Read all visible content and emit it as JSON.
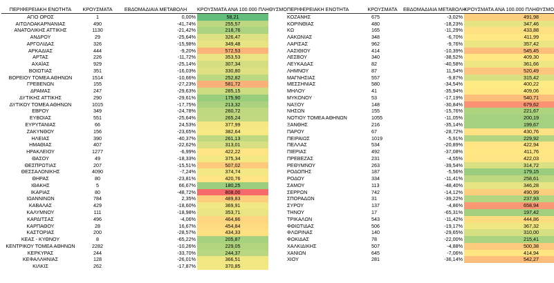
{
  "headers": {
    "region": "ΠΕΡΙΦΕΡΕΙΑΚΗ ΕΝΟΤΗΤΑ",
    "cases": "ΚΡΟΥΣΜΑΤΑ",
    "weekly_change": "ΕΒΔΟΜΑΔΙΑΙΑ ΜΕΤΑΒΟΛΗ",
    "rate": "ΚΡΟΥΣΜΑΤΑ ΑΝΑ 100.000 ΠΛΗΘΥΣΜΟ"
  },
  "color_scale": {
    "low": "#63be7b",
    "mid": "#ffeb84",
    "high": "#f8696b",
    "min": 58.21,
    "mid_value": 400,
    "max": 808.0
  },
  "left_rows": [
    {
      "region": "ΑΓΙΟ ΟΡΟΣ",
      "cases": "1",
      "change": "0,00%",
      "rate": "58,21"
    },
    {
      "region": "ΑΙΤΩΛΟΑΚΑΡΝΑΝΙΑΣ",
      "cases": "490",
      "change": "-41,74%",
      "rate": "255,57"
    },
    {
      "region": "ΑΝΑΤΟΛΙΚΗΣ ΑΤΤΙΚΗΣ",
      "cases": "1130",
      "change": "-21,42%",
      "rate": "218,76"
    },
    {
      "region": "ΑΝΔΡΟΥ",
      "cases": "29",
      "change": "-25,64%",
      "rate": "326,47"
    },
    {
      "region": "ΑΡΓΟΛΙΔΑΣ",
      "cases": "326",
      "change": "-15,98%",
      "rate": "349,48"
    },
    {
      "region": "ΑΡΚΑΔΙΑΣ",
      "cases": "444",
      "change": "-9,20%",
      "rate": "572,53"
    },
    {
      "region": "ΑΡΤΑΣ",
      "cases": "226",
      "change": "-11,72%",
      "rate": "353,53"
    },
    {
      "region": "ΑΧΑΪΑΣ",
      "cases": "929",
      "change": "-25,14%",
      "rate": "307,34"
    },
    {
      "region": "ΒΟΙΩΤΙΑΣ",
      "cases": "351",
      "change": "-16,03%",
      "rate": "330,80"
    },
    {
      "region": "ΒΟΡΕΙΟΥ ΤΟΜΕΑ ΑΘΗΝΩΝ",
      "cases": "1514",
      "change": "-10,66%",
      "rate": "252,82"
    },
    {
      "region": "ΓΡΕΒΕΝΩΝ",
      "cases": "155",
      "change": "-27,23%",
      "rate": "581,72"
    },
    {
      "region": "ΔΡΑΜΑΣ",
      "cases": "247",
      "change": "-29,63%",
      "rate": "285,15"
    },
    {
      "region": "ΔΥΤΙΚΗΣ ΑΤΤΙΚΗΣ",
      "cases": "290",
      "change": "-29,61%",
      "rate": "175,90"
    },
    {
      "region": "ΔΥΤΙΚΟΥ ΤΟΜΕΑ ΑΘΗΝΩΝ",
      "cases": "1015",
      "change": "-17,75%",
      "rate": "213,32"
    },
    {
      "region": "ΕΒΡΟΥ",
      "cases": "349",
      "change": "-24,78%",
      "rate": "260,72"
    },
    {
      "region": "ΕΥΒΟΙΑΣ",
      "cases": "551",
      "change": "-25,64%",
      "rate": "265,24"
    },
    {
      "region": "ΕΥΡΥΤΑΝΙΑΣ",
      "cases": "66",
      "change": "24,53%",
      "rate": "377,99"
    },
    {
      "region": "ΖΑΚΥΝΘΟΥ",
      "cases": "156",
      "change": "-23,65%",
      "rate": "382,64"
    },
    {
      "region": "ΗΛΕΙΑΣ",
      "cases": "390",
      "change": "-40,37%",
      "rate": "261,13"
    },
    {
      "region": "ΗΜΑΘΙΑΣ",
      "cases": "407",
      "change": "-22,62%",
      "rate": "313,01"
    },
    {
      "region": "ΗΡΑΚΛΕΙΟΥ",
      "cases": "1277",
      "change": "-6,99%",
      "rate": "422,22"
    },
    {
      "region": "ΘΑΣΟΥ",
      "cases": "49",
      "change": "-18,33%",
      "rate": "375,34"
    },
    {
      "region": "ΘΕΣΠΡΩΤΙΑΣ",
      "cases": "207",
      "change": "-15,51%",
      "rate": "507,02"
    },
    {
      "region": "ΘΕΣΣΑΛΟΝΙΚΗΣ",
      "cases": "4090",
      "change": "-7,24%",
      "rate": "374,74"
    },
    {
      "region": "ΘΗΡΑΣ",
      "cases": "80",
      "change": "-23,81%",
      "rate": "420,76"
    },
    {
      "region": "ΙΘΑΚΗΣ",
      "cases": "5",
      "change": "66,67%",
      "rate": "180,25"
    },
    {
      "region": "ΙΚΑΡΙΑΣ",
      "cases": "80",
      "change": "-48,72%",
      "rate": "808,00"
    },
    {
      "region": "ΙΩΑΝΝΙΝΩΝ",
      "cases": "784",
      "change": "2,35%",
      "rate": "489,83"
    },
    {
      "region": "ΚΑΒΑΛΑΣ",
      "cases": "429",
      "change": "-18,60%",
      "rate": "369,91"
    },
    {
      "region": "ΚΑΛΥΜΝΟΥ",
      "cases": "111",
      "change": "-18,98%",
      "rate": "353,71"
    },
    {
      "region": "ΚΑΡΔΙΤΣΑΣ",
      "cases": "496",
      "change": "-4,06%",
      "rate": "464,86"
    },
    {
      "region": "ΚΑΡΠΑΘΟΥ",
      "cases": "28",
      "change": "16,67%",
      "rate": "454,84"
    },
    {
      "region": "ΚΑΣΤΟΡΙΑΣ",
      "cases": "200",
      "change": "-28,57%",
      "rate": "434,33"
    },
    {
      "region": "ΚΕΑΣ - ΚΥΘΝΟΥ",
      "cases": "8",
      "change": "-65,22%",
      "rate": "205,87"
    },
    {
      "region": "ΚΕΝΤΡΙΚΟΥ ΤΟΜΕΑ ΑΘΗΝΩΝ",
      "cases": "2282",
      "change": "-10,26%",
      "rate": "229,05"
    },
    {
      "region": "ΚΕΡΚΥΡΑΣ",
      "cases": "244",
      "change": "-33,70%",
      "rate": "244,37"
    },
    {
      "region": "ΚΕΦΑΛΛΗΝΙΑΣ",
      "cases": "128",
      "change": "-26,01%",
      "rate": "366,51"
    },
    {
      "region": "ΚΙΛΚΙΣ",
      "cases": "262",
      "change": "-17,87%",
      "rate": "370,85"
    }
  ],
  "right_rows": [
    {
      "region": "ΚΟΖΑΝΗΣ",
      "cases": "675",
      "change": "-3,02%",
      "rate": "491,98"
    },
    {
      "region": "ΚΟΡΙΝΘΙΑΣ",
      "cases": "480",
      "change": "-18,23%",
      "rate": "347,46"
    },
    {
      "region": "ΚΩ",
      "cases": "165",
      "change": "-11,29%",
      "rate": "433,88"
    },
    {
      "region": "ΛΑΚΩΝΙΑΣ",
      "cases": "348",
      "change": "-6,70%",
      "rate": "411,99"
    },
    {
      "region": "ΛΑΡΙΣΑΣ",
      "cases": "962",
      "change": "-9,76%",
      "rate": "357,42"
    },
    {
      "region": "ΛΑΣΙΘΙΟΥ",
      "cases": "414",
      "change": "-10,39%",
      "rate": "545,45"
    },
    {
      "region": "ΛΕΣΒΟΥ",
      "cases": "340",
      "change": "-38,52%",
      "rate": "409,30"
    },
    {
      "region": "ΛΕΥΚΑΔΑΣ",
      "cases": "82",
      "change": "-40,58%",
      "rate": "361,66"
    },
    {
      "region": "ΛΗΜΝΟΥ",
      "cases": "87",
      "change": "11,54%",
      "rate": "520,49"
    },
    {
      "region": "ΜΑΓΝΗΣΙΑΣ",
      "cases": "557",
      "change": "-9,87%",
      "rate": "315,42"
    },
    {
      "region": "ΜΕΣΣΗΝΙΑΣ",
      "cases": "580",
      "change": "-34,54%",
      "rate": "400,22"
    },
    {
      "region": "ΜΗΛΟΥ",
      "cases": "41",
      "change": "-35,94%",
      "rate": "409,06"
    },
    {
      "region": "ΜΥΚΟΝΟΥ",
      "cases": "53",
      "change": "-17,19%",
      "rate": "540,71"
    },
    {
      "region": "ΝΑΞΟΥ",
      "cases": "148",
      "change": "-30,84%",
      "rate": "679,62"
    },
    {
      "region": "ΝΗΣΩΝ",
      "cases": "155",
      "change": "-15,76%",
      "rate": "221,67"
    },
    {
      "region": "ΝΟΤΙΟΥ ΤΟΜΕΑ ΑΘΗΝΩΝ",
      "cases": "1055",
      "change": "-11,05%",
      "rate": "200,19"
    },
    {
      "region": "ΞΑΝΘΗΣ",
      "cases": "216",
      "change": "-35,14%",
      "rate": "199,67"
    },
    {
      "region": "ΠΑΡΟΥ",
      "cases": "67",
      "change": "-28,72%",
      "rate": "430,76"
    },
    {
      "region": "ΠΕΙΡΑΙΩΣ",
      "cases": "1019",
      "change": "-5,91%",
      "rate": "229,92"
    },
    {
      "region": "ΠΕΛΛΑΣ",
      "cases": "534",
      "change": "-20,89%",
      "rate": "422,94"
    },
    {
      "region": "ΠΙΕΡΙΑΣ",
      "cases": "492",
      "change": "-37,08%",
      "rate": "411,76"
    },
    {
      "region": "ΠΡΕΒΕΖΑΣ",
      "cases": "231",
      "change": "-4,55%",
      "rate": "422,03"
    },
    {
      "region": "ΡΕΘΥΜΝΟΥ",
      "cases": "263",
      "change": "-39,54%",
      "rate": "314,72"
    },
    {
      "region": "ΡΟΔΟΠΗΣ",
      "cases": "187",
      "change": "-5,56%",
      "rate": "179,15"
    },
    {
      "region": "ΡΟΔΟΥ",
      "cases": "334",
      "change": "-11,41%",
      "rate": "258,61"
    },
    {
      "region": "ΣΑΜΟΥ",
      "cases": "113",
      "change": "-48,40%",
      "rate": "346,28"
    },
    {
      "region": "ΣΕΡΡΩΝ",
      "cases": "742",
      "change": "-14,12%",
      "rate": "490,99"
    },
    {
      "region": "ΣΠΟΡΑΔΩΝ",
      "cases": "31",
      "change": "-39,22%",
      "rate": "237,93"
    },
    {
      "region": "ΣΥΡΟΥ",
      "cases": "137",
      "change": "-4,86%",
      "rate": "658,94"
    },
    {
      "region": "ΤΗΝΟΥ",
      "cases": "17",
      "change": "-65,31%",
      "rate": "197,42"
    },
    {
      "region": "ΤΡΙΚΑΛΩΝ",
      "cases": "543",
      "change": "-11,42%",
      "rate": "444,86"
    },
    {
      "region": "ΦΘΙΩΤΙΔΑΣ",
      "cases": "506",
      "change": "-19,17%",
      "rate": "367,32"
    },
    {
      "region": "ΦΛΩΡΙΝΑΣ",
      "cases": "140",
      "change": "-29,65%",
      "rate": "310,00"
    },
    {
      "region": "ΦΩΚΙΔΑΣ",
      "cases": "78",
      "change": "-22,00%",
      "rate": "215,41"
    },
    {
      "region": "ΧΑΛΚΙΔΙΚΗΣ",
      "cases": "507",
      "change": "-4,88%",
      "rate": "500,38"
    },
    {
      "region": "ΧΑΝΙΩΝ",
      "cases": "645",
      "change": "-7,06%",
      "rate": "414,94"
    },
    {
      "region": "ΧΙΟΥ",
      "cases": "281",
      "change": "-36,14%",
      "rate": "542,27"
    }
  ]
}
